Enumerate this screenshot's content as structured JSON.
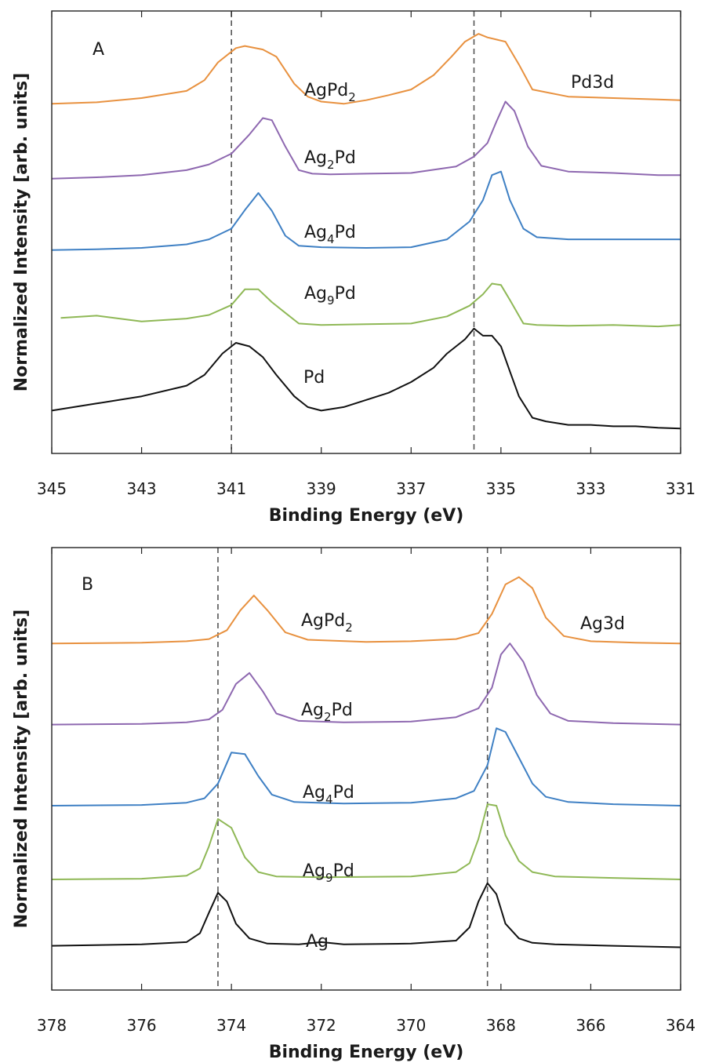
{
  "chart_data": [
    {
      "type": "line",
      "panel_label": "A",
      "region_label": "Pd3d",
      "xlabel": "Binding Energy (eV)",
      "ylabel": "Normalized Intensity [arb. units]",
      "xlim": [
        345,
        331
      ],
      "x_reversed": true,
      "x_ticks": [
        345,
        343,
        341,
        339,
        337,
        335,
        333,
        331
      ],
      "y_ticks_shown": false,
      "grid": false,
      "reference_lines": [
        341.0,
        335.6
      ],
      "series": [
        {
          "base": "AgPd",
          "sub": "2",
          "tail": "",
          "color": "#e8913f",
          "offset": 4.3,
          "x": [
            345,
            344,
            343,
            342,
            341.6,
            341.3,
            340.9,
            340.7,
            340.3,
            340.0,
            339.6,
            339.3,
            339.0,
            338.5,
            338.0,
            337.5,
            337.0,
            336.5,
            336.1,
            335.8,
            335.5,
            335.3,
            335.1,
            334.9,
            334.6,
            334.3,
            333.5,
            332.5,
            331.5,
            331
          ],
          "y": [
            0.0,
            0.02,
            0.08,
            0.18,
            0.33,
            0.58,
            0.78,
            0.81,
            0.76,
            0.66,
            0.28,
            0.1,
            0.03,
            0.0,
            0.05,
            0.12,
            0.2,
            0.4,
            0.66,
            0.87,
            0.98,
            0.93,
            0.9,
            0.87,
            0.55,
            0.2,
            0.1,
            0.08,
            0.06,
            0.05
          ]
        },
        {
          "base": "Ag",
          "sub": "2",
          "tail": "Pd",
          "color": "#8e68b0",
          "offset": 3.25,
          "x": [
            345,
            344,
            343,
            342,
            341.5,
            341.0,
            340.6,
            340.3,
            340.1,
            339.8,
            339.5,
            339.2,
            338.8,
            338.0,
            337.0,
            336.0,
            335.6,
            335.3,
            335.1,
            334.9,
            334.7,
            334.4,
            334.1,
            333.5,
            332.5,
            331.5,
            331
          ],
          "y": [
            0.0,
            0.02,
            0.05,
            0.12,
            0.2,
            0.35,
            0.62,
            0.85,
            0.82,
            0.45,
            0.12,
            0.07,
            0.06,
            0.07,
            0.08,
            0.17,
            0.31,
            0.5,
            0.8,
            1.08,
            0.95,
            0.45,
            0.18,
            0.1,
            0.08,
            0.05,
            0.05
          ]
        },
        {
          "base": "Ag",
          "sub": "4",
          "tail": "Pd",
          "color": "#3f80c4",
          "offset": 2.25,
          "x": [
            345,
            344,
            343,
            342,
            341.5,
            341.0,
            340.7,
            340.4,
            340.1,
            339.8,
            339.5,
            339.0,
            338.0,
            337.0,
            336.2,
            335.7,
            335.4,
            335.2,
            335.0,
            334.8,
            334.5,
            334.2,
            333.5,
            332.5,
            331.5,
            331
          ],
          "y": [
            0.0,
            0.01,
            0.03,
            0.08,
            0.15,
            0.3,
            0.56,
            0.8,
            0.55,
            0.2,
            0.06,
            0.04,
            0.03,
            0.04,
            0.15,
            0.4,
            0.7,
            1.05,
            1.1,
            0.7,
            0.3,
            0.18,
            0.15,
            0.15,
            0.15,
            0.15
          ]
        },
        {
          "base": "Ag",
          "sub": "9",
          "tail": "Pd",
          "color": "#8fb856",
          "offset": 1.3,
          "x": [
            344.8,
            344,
            343,
            342,
            341.5,
            341.0,
            340.7,
            340.4,
            340.1,
            339.8,
            339.5,
            339.0,
            338.0,
            337.0,
            336.2,
            335.7,
            335.4,
            335.2,
            335.0,
            334.8,
            334.5,
            334.2,
            333.5,
            332.5,
            331.5,
            331
          ],
          "y": [
            0.0,
            0.03,
            -0.05,
            -0.01,
            0.04,
            0.18,
            0.4,
            0.4,
            0.22,
            0.07,
            -0.08,
            -0.1,
            -0.09,
            -0.08,
            0.02,
            0.17,
            0.33,
            0.48,
            0.46,
            0.25,
            -0.08,
            -0.1,
            -0.11,
            -0.1,
            -0.12,
            -0.1
          ]
        },
        {
          "base": "Pd",
          "sub": "",
          "tail": "",
          "color": "#111111",
          "offset": 0.0,
          "x": [
            345,
            344,
            343,
            342,
            341.6,
            341.2,
            340.9,
            340.6,
            340.3,
            340.0,
            339.6,
            339.3,
            339.0,
            338.5,
            338.0,
            337.5,
            337.0,
            336.5,
            336.2,
            335.8,
            335.6,
            335.4,
            335.2,
            335.0,
            334.8,
            334.6,
            334.3,
            334.0,
            333.5,
            333.0,
            332.5,
            332.0,
            331.5,
            331
          ],
          "y": [
            0.0,
            0.1,
            0.2,
            0.35,
            0.5,
            0.8,
            0.95,
            0.9,
            0.75,
            0.5,
            0.2,
            0.05,
            0.0,
            0.05,
            0.15,
            0.25,
            0.4,
            0.6,
            0.8,
            1.0,
            1.15,
            1.05,
            1.05,
            0.9,
            0.55,
            0.2,
            -0.1,
            -0.15,
            -0.2,
            -0.2,
            -0.22,
            -0.22,
            -0.24,
            -0.25
          ]
        }
      ]
    },
    {
      "type": "line",
      "panel_label": "B",
      "region_label": "Ag3d",
      "xlabel": "Binding Energy (eV)",
      "ylabel": "Normalized Intensity [arb. units]",
      "xlim": [
        378,
        364
      ],
      "x_reversed": true,
      "x_ticks": [
        378,
        376,
        374,
        372,
        370,
        368,
        366,
        364
      ],
      "y_ticks_shown": false,
      "grid": false,
      "reference_lines": [
        374.3,
        368.3
      ],
      "series": [
        {
          "base": "AgPd",
          "sub": "2",
          "tail": "",
          "color": "#e8913f",
          "offset": 4.1,
          "x": [
            378,
            376,
            375,
            374.5,
            374.1,
            373.8,
            373.5,
            373.2,
            372.8,
            372.3,
            371.0,
            370.0,
            369.0,
            368.5,
            368.2,
            367.9,
            367.6,
            367.3,
            367.0,
            366.6,
            366.0,
            365.0,
            364
          ],
          "y": [
            0.0,
            0.01,
            0.03,
            0.06,
            0.18,
            0.45,
            0.65,
            0.45,
            0.15,
            0.05,
            0.02,
            0.03,
            0.06,
            0.14,
            0.4,
            0.8,
            0.9,
            0.75,
            0.35,
            0.1,
            0.03,
            0.01,
            0.0
          ]
        },
        {
          "base": "Ag",
          "sub": "2",
          "tail": "Pd",
          "color": "#8e68b0",
          "offset": 3.0,
          "x": [
            378,
            376,
            375,
            374.5,
            374.2,
            373.9,
            373.6,
            373.3,
            373.0,
            372.5,
            371.5,
            370.0,
            369.0,
            368.5,
            368.2,
            368.0,
            367.8,
            367.5,
            367.2,
            366.9,
            366.5,
            365.5,
            364
          ],
          "y": [
            0.0,
            0.01,
            0.03,
            0.07,
            0.2,
            0.55,
            0.7,
            0.45,
            0.15,
            0.05,
            0.03,
            0.04,
            0.1,
            0.22,
            0.5,
            0.95,
            1.1,
            0.85,
            0.4,
            0.15,
            0.05,
            0.02,
            0.0
          ]
        },
        {
          "base": "Ag",
          "sub": "4",
          "tail": "Pd",
          "color": "#3f80c4",
          "offset": 1.9,
          "x": [
            378,
            376,
            375,
            374.6,
            374.3,
            374.0,
            373.7,
            373.4,
            373.1,
            372.6,
            371.5,
            370.0,
            369.0,
            368.6,
            368.3,
            368.1,
            367.9,
            367.6,
            367.3,
            367.0,
            366.5,
            365.5,
            364
          ],
          "y": [
            0.0,
            0.01,
            0.04,
            0.1,
            0.3,
            0.72,
            0.7,
            0.4,
            0.15,
            0.05,
            0.03,
            0.04,
            0.1,
            0.2,
            0.55,
            1.05,
            1.0,
            0.65,
            0.3,
            0.12,
            0.05,
            0.02,
            0.0
          ]
        },
        {
          "base": "Ag",
          "sub": "9",
          "tail": "Pd",
          "color": "#8fb856",
          "offset": 0.9,
          "x": [
            378,
            376,
            375,
            374.7,
            374.5,
            374.3,
            374.0,
            373.7,
            373.4,
            373.0,
            372.0,
            370.0,
            369.0,
            368.7,
            368.5,
            368.3,
            368.1,
            367.9,
            367.6,
            367.3,
            366.8,
            365.5,
            364
          ],
          "y": [
            0.0,
            0.01,
            0.05,
            0.15,
            0.45,
            0.82,
            0.7,
            0.3,
            0.1,
            0.04,
            0.03,
            0.04,
            0.1,
            0.22,
            0.55,
            1.02,
            1.0,
            0.6,
            0.25,
            0.1,
            0.04,
            0.02,
            0.0
          ]
        },
        {
          "base": "Ag",
          "sub": "",
          "tail": "",
          "color": "#111111",
          "offset": 0.0,
          "x": [
            378,
            376,
            375,
            374.7,
            374.5,
            374.3,
            374.1,
            373.9,
            373.6,
            373.2,
            372.5,
            372.0,
            371.5,
            370.0,
            369.0,
            368.7,
            368.5,
            368.3,
            368.1,
            367.9,
            367.6,
            367.3,
            366.8,
            365.5,
            364
          ],
          "y": [
            0.0,
            0.02,
            0.05,
            0.17,
            0.45,
            0.72,
            0.6,
            0.3,
            0.1,
            0.03,
            0.02,
            0.05,
            0.02,
            0.03,
            0.07,
            0.25,
            0.6,
            0.85,
            0.7,
            0.3,
            0.1,
            0.04,
            0.02,
            0.0,
            -0.02
          ]
        }
      ]
    }
  ]
}
